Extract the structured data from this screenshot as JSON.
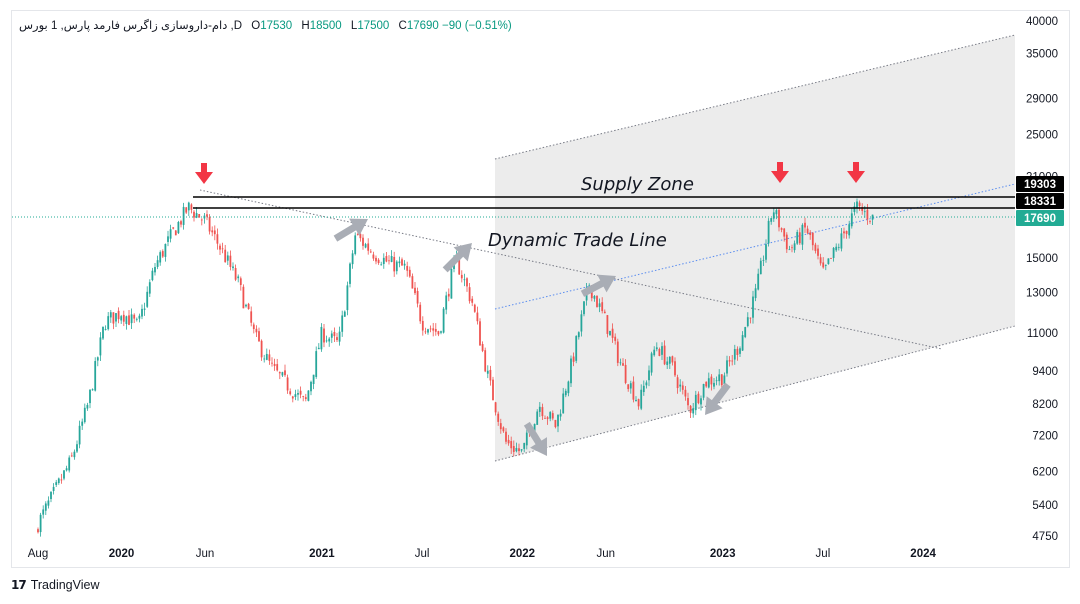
{
  "header": {
    "symbol": "دام-داروسازی زاگرس فارمد پارس, 1",
    "meta": "بورس ,D",
    "o_label": "O",
    "o": "17530",
    "h_label": "H",
    "h": "18500",
    "l_label": "L",
    "l": "17500",
    "c_label": "C",
    "c": "17690",
    "change": "−90 (−0.51%)"
  },
  "brand": {
    "logo": "17",
    "name": "TradingView"
  },
  "chart_data": {
    "type": "candlestick",
    "scale": "log",
    "ylim": [
      4600,
      40000
    ],
    "y_ticks": [
      40000,
      35000,
      29000,
      25000,
      21000,
      15000,
      13000,
      11000,
      9400,
      8200,
      7200,
      6200,
      5400,
      4750
    ],
    "x_ticks": [
      "Aug",
      "2020",
      "Jun",
      "2021",
      "Jul",
      "2022",
      "Jun",
      "2023",
      "Jul",
      "2024"
    ],
    "price_labels": [
      {
        "value": 19303,
        "text": "19303",
        "color": "#000000"
      },
      {
        "value": 18331,
        "text": "18331",
        "color": "#000000"
      },
      {
        "value": 17690,
        "text": "17690",
        "color": "#22ab94"
      }
    ],
    "annotations": {
      "supply_zone": "Supply Zone",
      "trade_line": "Dynamic Trade Line"
    },
    "colors": {
      "up": "#26a69a",
      "down": "#ef5350",
      "arrow_red": "#f23645",
      "arrow_gray": "#a9adb5",
      "zone_fill": "#ececec",
      "midline": "#5b8def"
    },
    "price_path": [
      {
        "x": "Aug 2019",
        "y": 5000
      },
      {
        "x": "Oct 2019",
        "y": 6500
      },
      {
        "x": "Nov 2019",
        "y": 8200
      },
      {
        "x": "Dec 2019",
        "y": 11500
      },
      {
        "x": "Jan 2020",
        "y": 12000
      },
      {
        "x": "Feb 2020",
        "y": 11300
      },
      {
        "x": "Mar 2020",
        "y": 14500
      },
      {
        "x": "Apr 2020",
        "y": 16500
      },
      {
        "x": "May 2020",
        "y": 18500
      },
      {
        "x": "Jun 2020",
        "y": 17500
      },
      {
        "x": "Jul 2020",
        "y": 15500
      },
      {
        "x": "Aug 2020",
        "y": 13500
      },
      {
        "x": "Sep 2020",
        "y": 10800
      },
      {
        "x": "Oct 2020",
        "y": 9500
      },
      {
        "x": "Dec 2020",
        "y": 8200
      },
      {
        "x": "Jan 2021",
        "y": 11000
      },
      {
        "x": "Feb 2021",
        "y": 10500
      },
      {
        "x": "Mar 2021",
        "y": 16500
      },
      {
        "x": "Apr 2021",
        "y": 15400
      },
      {
        "x": "May 2021",
        "y": 14700
      },
      {
        "x": "Jun 2021",
        "y": 14400
      },
      {
        "x": "Jul 2021",
        "y": 11500
      },
      {
        "x": "Aug 2021",
        "y": 11000
      },
      {
        "x": "Sep 2021",
        "y": 15000
      },
      {
        "x": "Oct 2021",
        "y": 12500
      },
      {
        "x": "Nov 2021",
        "y": 9000
      },
      {
        "x": "Dec 2021",
        "y": 7000
      },
      {
        "x": "Jan 2022",
        "y": 6700
      },
      {
        "x": "Feb 2022",
        "y": 8200
      },
      {
        "x": "Mar 2022",
        "y": 7500
      },
      {
        "x": "Apr 2022",
        "y": 9800
      },
      {
        "x": "May 2022",
        "y": 13500
      },
      {
        "x": "Jun 2022",
        "y": 11500
      },
      {
        "x": "Jul 2022",
        "y": 9500
      },
      {
        "x": "Aug 2022",
        "y": 8200
      },
      {
        "x": "Sep 2022",
        "y": 10500
      },
      {
        "x": "Oct 2022",
        "y": 9500
      },
      {
        "x": "Nov 2022",
        "y": 8000
      },
      {
        "x": "Dec 2022",
        "y": 9000
      },
      {
        "x": "Jan 2023",
        "y": 9200
      },
      {
        "x": "Feb 2023",
        "y": 10500
      },
      {
        "x": "Mar 2023",
        "y": 13000
      },
      {
        "x": "Apr 2023",
        "y": 18500
      },
      {
        "x": "May 2023",
        "y": 15500
      },
      {
        "x": "Jun 2023",
        "y": 17000
      },
      {
        "x": "Jul 2023",
        "y": 14000
      },
      {
        "x": "Aug 2023",
        "y": 16000
      },
      {
        "x": "Sep 2023",
        "y": 18500
      },
      {
        "x": "Oct 2023",
        "y": 17690
      }
    ]
  }
}
